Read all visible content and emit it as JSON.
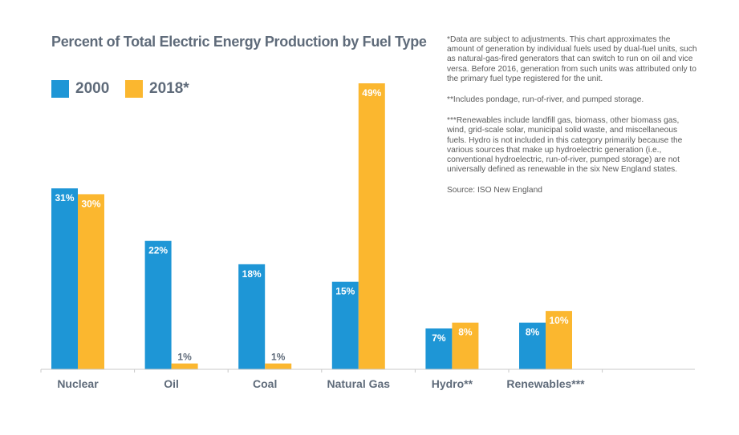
{
  "chart_data": {
    "type": "bar",
    "title": "Percent of Total Electric Energy Production by Fuel Type",
    "categories": [
      "Nuclear",
      "Oil",
      "Coal",
      "Natural Gas",
      "Hydro**",
      "Renewables***"
    ],
    "series": [
      {
        "name": "2000",
        "values": [
          31,
          22,
          18,
          15,
          7,
          8
        ],
        "labels": [
          "31%",
          "22%",
          "18%",
          "15%",
          "7%",
          "8%"
        ],
        "color": "#1e96d6"
      },
      {
        "name": "2018*",
        "values": [
          30,
          1,
          1,
          49,
          8,
          10
        ],
        "labels": [
          "30%",
          "1%",
          "1%",
          "49%",
          "8%",
          "10%"
        ],
        "color": "#fbb72f"
      }
    ],
    "ylim": [
      0,
      49
    ],
    "xlabel": "",
    "ylabel": "",
    "grid": false,
    "legend": "top-left"
  },
  "notes": [
    "*Data are subject to adjustments. This chart approximates the amount of generation by individual fuels used by dual-fuel units, such as natural-gas-fired generators that can switch to run on oil and vice versa. Before 2016, generation from such units was attributed only to the primary fuel type registered for the unit.",
    "**Includes pondage, run-of-river, and pumped storage.",
    "***Renewables include landfill gas, biomass, other biomass gas, wind, grid-scale solar, municipal solid waste, and miscellaneous fuels. Hydro is not included in this category primarily because the various sources that make up hydroelectric generation (i.e., conventional hydroelectric, run-of-river, pumped storage) are not universally defined as renewable in the six New England states.",
    "Source: ISO New England"
  ],
  "colors": {
    "axis": "#c8c8c8",
    "text": "#5f6b7a",
    "label_inside": "#ffffff",
    "label_outside": "#5f6b7a"
  }
}
